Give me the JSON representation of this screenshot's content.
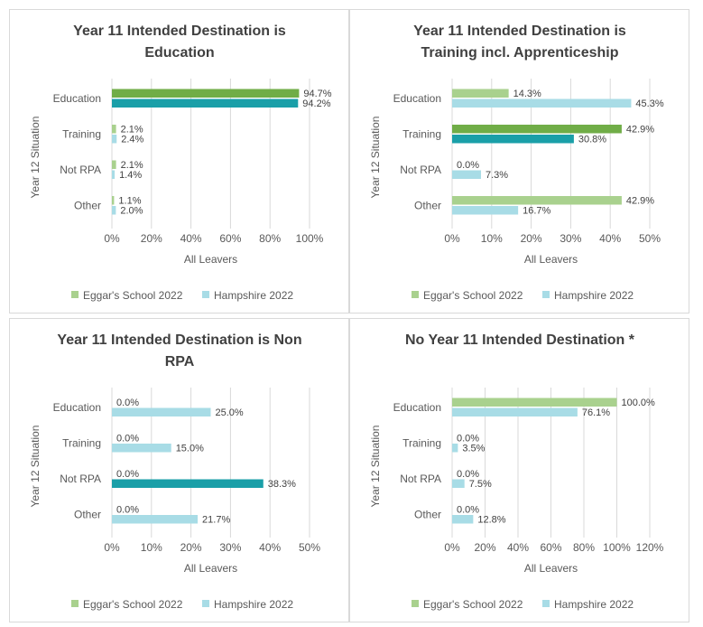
{
  "legend": {
    "school": "Eggar's School 2022",
    "hampshire": "Hampshire 2022"
  },
  "colors": {
    "school": "#a9d18e",
    "school_dark": "#70ad47",
    "hampshire": "#a8dce6",
    "hampshire_dark": "#1a9fa8",
    "grid": "#d9d9d9",
    "border": "#d9d9d9"
  },
  "chart_data": [
    {
      "type": "bar",
      "title": [
        "Year 11 Intended Destination is",
        "Education"
      ],
      "xlabel": "All Leavers",
      "ylabel": "Year 12 Situation",
      "categories": [
        "Education",
        "Training",
        "Not RPA",
        "Other"
      ],
      "xlim": [
        0,
        100
      ],
      "ticks": [
        "0%",
        "20%",
        "40%",
        "60%",
        "80%",
        "100%"
      ],
      "highlight": "Education",
      "series": [
        {
          "name": "Eggar's School 2022",
          "values": [
            94.7,
            2.1,
            2.1,
            1.1
          ],
          "labels": [
            "94.7%",
            "2.1%",
            "2.1%",
            "1.1%"
          ]
        },
        {
          "name": "Hampshire 2022",
          "values": [
            94.2,
            2.4,
            1.4,
            2.0
          ],
          "labels": [
            "94.2%",
            "2.4%",
            "1.4%",
            "2.0%"
          ]
        }
      ]
    },
    {
      "type": "bar",
      "title": [
        "Year 11 Intended Destination is",
        "Training incl. Apprenticeship"
      ],
      "xlabel": "All Leavers",
      "ylabel": "Year 12 Situation",
      "categories": [
        "Education",
        "Training",
        "Not RPA",
        "Other"
      ],
      "xlim": [
        0,
        50
      ],
      "ticks": [
        "0%",
        "10%",
        "20%",
        "30%",
        "40%",
        "50%"
      ],
      "highlight": "Training",
      "series": [
        {
          "name": "Eggar's School 2022",
          "values": [
            14.3,
            42.9,
            0.0,
            42.9
          ],
          "labels": [
            "14.3%",
            "42.9%",
            "0.0%",
            "42.9%"
          ]
        },
        {
          "name": "Hampshire 2022",
          "values": [
            45.3,
            30.8,
            7.3,
            16.7
          ],
          "labels": [
            "45.3%",
            "30.8%",
            "7.3%",
            "16.7%"
          ]
        }
      ]
    },
    {
      "type": "bar",
      "title": [
        "Year 11 Intended Destination is Non",
        "RPA"
      ],
      "xlabel": "All Leavers",
      "ylabel": "Year 12 Situation",
      "categories": [
        "Education",
        "Training",
        "Not RPA",
        "Other"
      ],
      "xlim": [
        0,
        50
      ],
      "ticks": [
        "0%",
        "10%",
        "20%",
        "30%",
        "40%",
        "50%"
      ],
      "highlight": "Not RPA",
      "series": [
        {
          "name": "Eggar's School 2022",
          "values": [
            0.0,
            0.0,
            0.0,
            0.0
          ],
          "labels": [
            "0.0%",
            "0.0%",
            "0.0%",
            "0.0%"
          ]
        },
        {
          "name": "Hampshire 2022",
          "values": [
            25.0,
            15.0,
            38.3,
            21.7
          ],
          "labels": [
            "25.0%",
            "15.0%",
            "38.3%",
            "21.7%"
          ]
        }
      ]
    },
    {
      "type": "bar",
      "title": [
        "No Year 11 Intended Destination *"
      ],
      "xlabel": "All Leavers",
      "ylabel": "Year 12 Situation",
      "categories": [
        "Education",
        "Training",
        "Not RPA",
        "Other"
      ],
      "xlim": [
        0,
        120
      ],
      "ticks": [
        "0%",
        "20%",
        "40%",
        "60%",
        "80%",
        "100%",
        "120%"
      ],
      "highlight": "",
      "series": [
        {
          "name": "Eggar's School 2022",
          "values": [
            100.0,
            0.0,
            0.0,
            0.0
          ],
          "labels": [
            "100.0%",
            "0.0%",
            "0.0%",
            "0.0%"
          ]
        },
        {
          "name": "Hampshire 2022",
          "values": [
            76.1,
            3.5,
            7.5,
            12.8
          ],
          "labels": [
            "76.1%",
            "3.5%",
            "7.5%",
            "12.8%"
          ]
        }
      ]
    }
  ]
}
